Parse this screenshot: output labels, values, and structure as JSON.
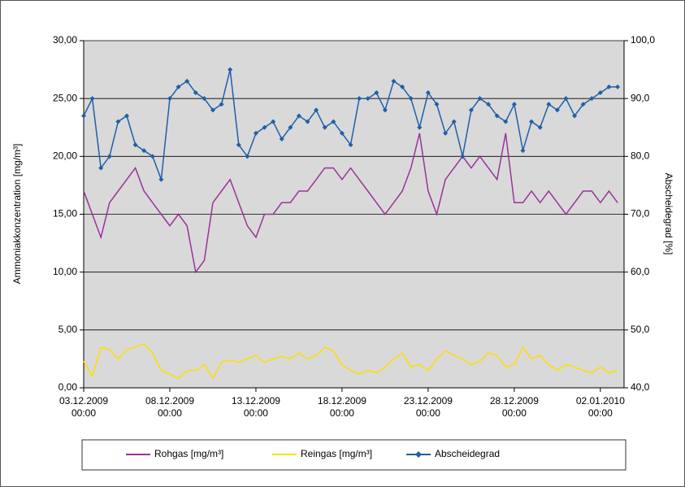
{
  "chart_data": {
    "type": "line",
    "y_label": "Ammoniakkonzentration [mg/m³]",
    "y2_label": "Abscheidegrad [%]",
    "x": [
      "2009-12-03T00:00",
      "2009-12-03T12:00",
      "2009-12-04T00:00",
      "2009-12-04T12:00",
      "2009-12-05T00:00",
      "2009-12-05T12:00",
      "2009-12-06T00:00",
      "2009-12-06T12:00",
      "2009-12-07T00:00",
      "2009-12-07T12:00",
      "2009-12-08T00:00",
      "2009-12-08T12:00",
      "2009-12-09T00:00",
      "2009-12-09T12:00",
      "2009-12-10T00:00",
      "2009-12-10T12:00",
      "2009-12-11T00:00",
      "2009-12-11T12:00",
      "2009-12-12T00:00",
      "2009-12-12T12:00",
      "2009-12-13T00:00",
      "2009-12-13T12:00",
      "2009-12-14T00:00",
      "2009-12-14T12:00",
      "2009-12-15T00:00",
      "2009-12-15T12:00",
      "2009-12-16T00:00",
      "2009-12-16T12:00",
      "2009-12-17T00:00",
      "2009-12-17T12:00",
      "2009-12-18T00:00",
      "2009-12-18T12:00",
      "2009-12-19T00:00",
      "2009-12-19T12:00",
      "2009-12-20T00:00",
      "2009-12-20T12:00",
      "2009-12-21T00:00",
      "2009-12-21T12:00",
      "2009-12-22T00:00",
      "2009-12-22T12:00",
      "2009-12-23T00:00",
      "2009-12-23T12:00",
      "2009-12-24T00:00",
      "2009-12-24T12:00",
      "2009-12-25T00:00",
      "2009-12-25T12:00",
      "2009-12-26T00:00",
      "2009-12-26T12:00",
      "2009-12-27T00:00",
      "2009-12-27T12:00",
      "2009-12-28T00:00",
      "2009-12-28T12:00",
      "2009-12-29T00:00",
      "2009-12-29T12:00",
      "2009-12-30T00:00",
      "2009-12-30T12:00",
      "2009-12-31T00:00",
      "2009-12-31T12:00",
      "2010-01-01T00:00",
      "2010-01-01T12:00",
      "2010-01-02T00:00",
      "2010-01-02T12:00",
      "2010-01-03T00:00"
    ],
    "series": [
      {
        "name": "Rohgas [mg/m³]",
        "color": "#993399",
        "axis": "y",
        "values": [
          17,
          15,
          13,
          16,
          17,
          18,
          19,
          17,
          16,
          15,
          14,
          15,
          14,
          10,
          11,
          16,
          17,
          18,
          16,
          14,
          13,
          15,
          15,
          16,
          16,
          17,
          17,
          18,
          19,
          19,
          18,
          19,
          18,
          17,
          16,
          15,
          16,
          17,
          19,
          22,
          17,
          15,
          18,
          19,
          20,
          19,
          20,
          19,
          18,
          22,
          16,
          16,
          17,
          16,
          17,
          16,
          15,
          16,
          17,
          17,
          16,
          17,
          16
        ]
      },
      {
        "name": "Reingas [mg/m³]",
        "color": "#ffdd00",
        "axis": "y",
        "values": [
          2.3,
          1.0,
          3.5,
          3.3,
          2.5,
          3.3,
          3.5,
          3.8,
          3.0,
          1.5,
          1.2,
          0.8,
          1.5,
          1.5,
          2.0,
          0.8,
          2.2,
          2.4,
          2.2,
          2.5,
          2.8,
          2.2,
          2.5,
          2.7,
          2.5,
          3.0,
          2.5,
          2.8,
          3.5,
          3.2,
          2.0,
          1.5,
          1.2,
          1.5,
          1.3,
          1.8,
          2.5,
          3.0,
          1.8,
          2.0,
          1.5,
          2.5,
          3.2,
          2.8,
          2.5,
          2.0,
          2.3,
          3.0,
          2.8,
          1.8,
          2.0,
          3.5,
          2.5,
          2.8,
          2.0,
          1.5,
          2.0,
          1.8,
          1.5,
          1.3,
          1.8,
          1.3,
          1.5
        ]
      },
      {
        "name": "Abscheidegrad",
        "color": "#1f5fa8",
        "axis": "y2",
        "marker": "diamond",
        "values": [
          87,
          90,
          78,
          80,
          86,
          87,
          82,
          81,
          80,
          76,
          90,
          92,
          93,
          91,
          90,
          88,
          89,
          95,
          82,
          80,
          84,
          85,
          86,
          83,
          85,
          87,
          86,
          88,
          85,
          86,
          84,
          82,
          90,
          90,
          91,
          88,
          93,
          92,
          90,
          85,
          91,
          89,
          84,
          86,
          80,
          88,
          90,
          89,
          87,
          86,
          89,
          81,
          86,
          85,
          89,
          88,
          90,
          87,
          89,
          90,
          91,
          92,
          92
        ]
      }
    ],
    "xlim": [
      "2009-12-03T00:00",
      "2010-01-03T09:00"
    ],
    "xticks": [
      {
        "value": "2009-12-03T00:00",
        "label": "03.12.2009 00:00"
      },
      {
        "value": "2009-12-08T00:00",
        "label": "08.12.2009 00:00"
      },
      {
        "value": "2009-12-13T00:00",
        "label": "13.12.2009 00:00"
      },
      {
        "value": "2009-12-18T00:00",
        "label": "18.12.2009 00:00"
      },
      {
        "value": "2009-12-23T00:00",
        "label": "23.12.2009 00:00"
      },
      {
        "value": "2009-12-28T00:00",
        "label": "28.12.2009 00:00"
      },
      {
        "value": "2010-01-02T00:00",
        "label": "02.01.2010 00:00"
      }
    ],
    "ylim": [
      0,
      30
    ],
    "yticks": [
      {
        "value": 0,
        "label": "0,00"
      },
      {
        "value": 5,
        "label": "5,00"
      },
      {
        "value": 10,
        "label": "10,00"
      },
      {
        "value": 15,
        "label": "15,00"
      },
      {
        "value": 20,
        "label": "20,00"
      },
      {
        "value": 25,
        "label": "25,00"
      },
      {
        "value": 30,
        "label": "30,00"
      }
    ],
    "y2lim": [
      40,
      100
    ],
    "y2ticks": [
      {
        "value": 40,
        "label": "40,0"
      },
      {
        "value": 50,
        "label": "50,0"
      },
      {
        "value": 60,
        "label": "60,0"
      },
      {
        "value": 70,
        "label": "70,0"
      },
      {
        "value": 80,
        "label": "80,0"
      },
      {
        "value": 90,
        "label": "90,0"
      },
      {
        "value": 100,
        "label": "100,0"
      }
    ],
    "grid": true,
    "plot_background": "#d9d9d9",
    "legend": "bottom"
  }
}
